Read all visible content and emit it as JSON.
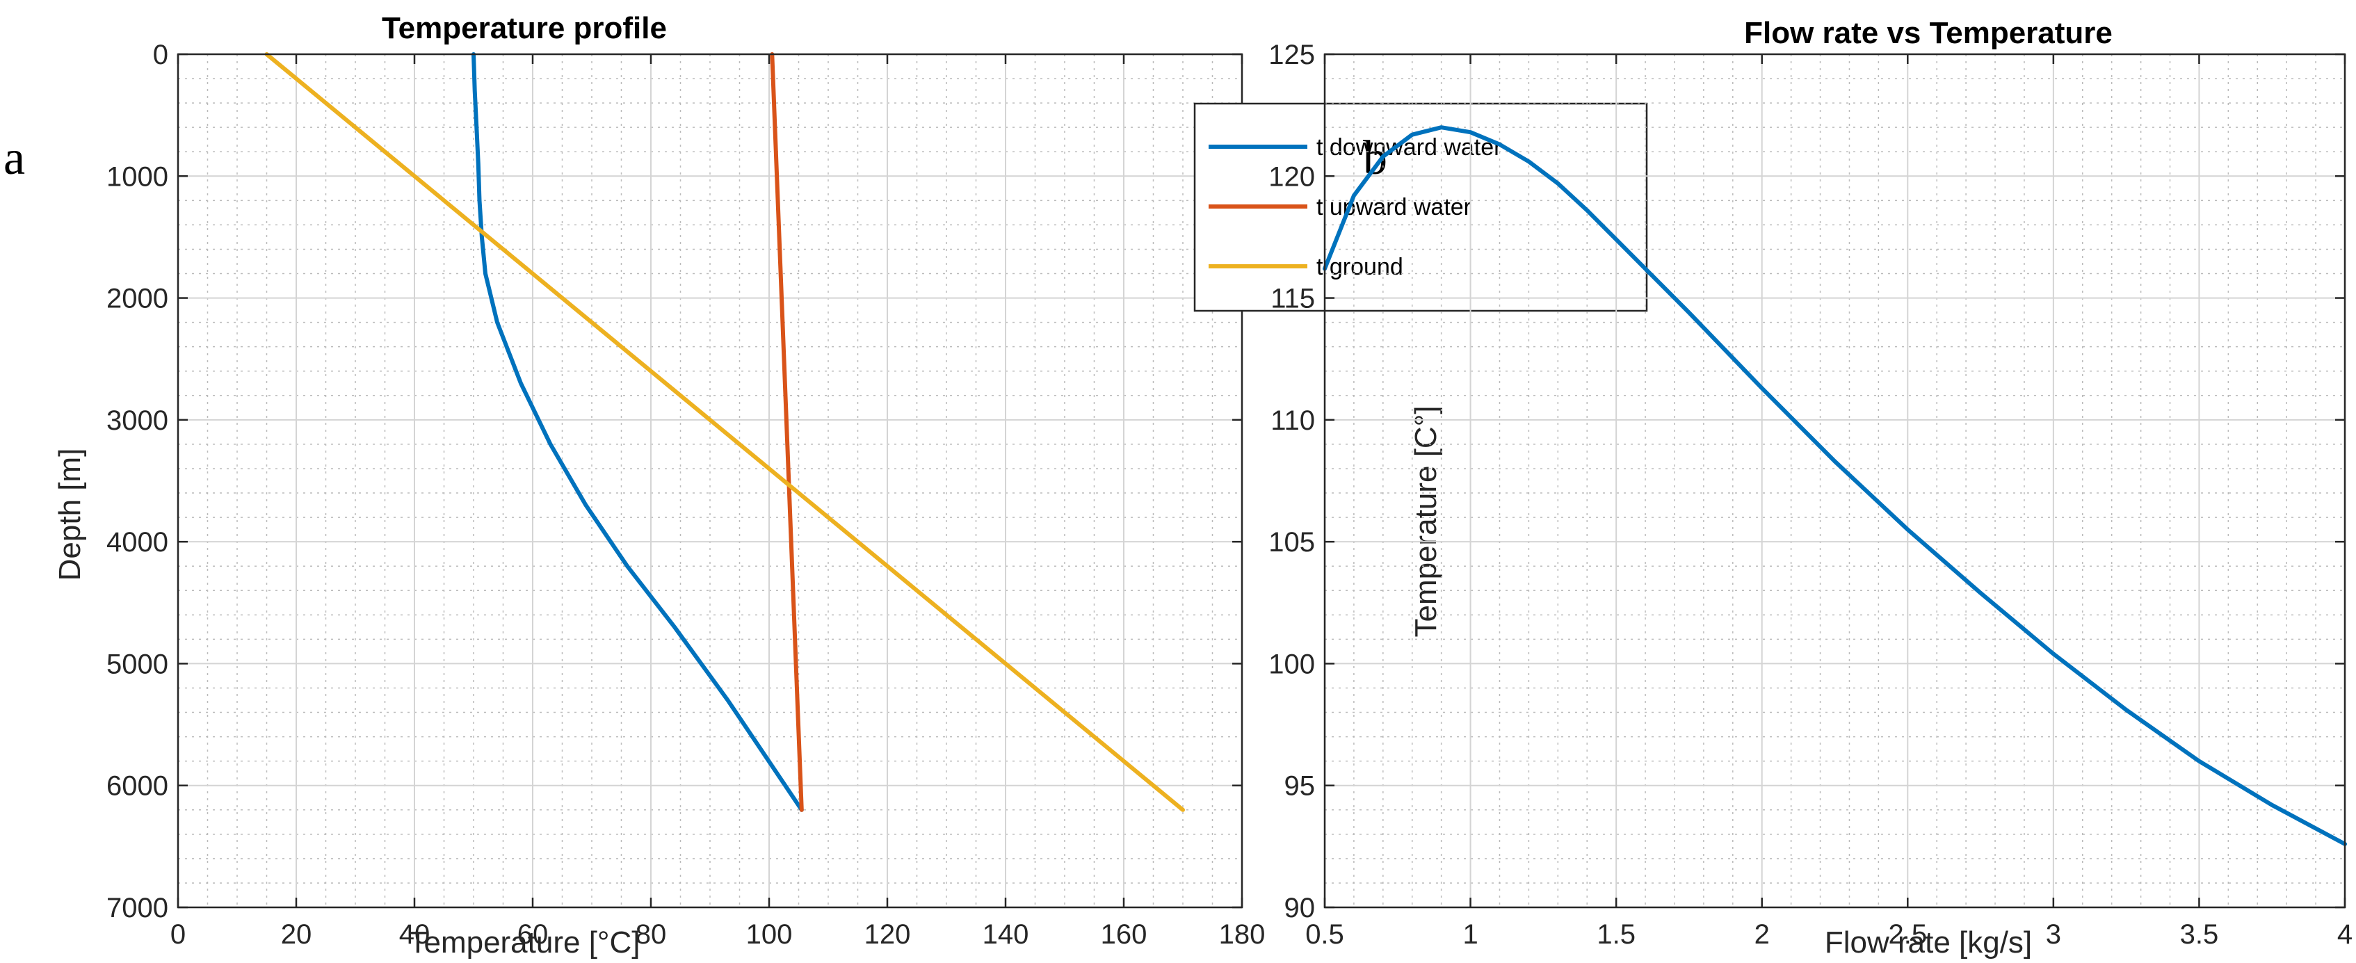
{
  "colors": {
    "blue": "#0072BD",
    "orange": "#D95319",
    "yellow": "#EDB120"
  },
  "chart_data": [
    {
      "type": "line",
      "panel_label": "a",
      "title": "Temperature profile",
      "xlabel": "Temperature [°C]",
      "ylabel": "Depth [m]",
      "xlim": [
        0,
        180
      ],
      "ylim": [
        0,
        7000
      ],
      "y_reversed": true,
      "grid": true,
      "minor_grid": true,
      "x_ticks": [
        0,
        20,
        40,
        60,
        80,
        100,
        120,
        140,
        160,
        180
      ],
      "y_ticks": [
        0,
        1000,
        2000,
        3000,
        4000,
        5000,
        6000,
        7000
      ],
      "legend_position": "top-right",
      "series": [
        {
          "name": "t downward water",
          "color": "#0072BD",
          "x": [
            50,
            50.2,
            50.5,
            50.8,
            51,
            51.4,
            52,
            54,
            58,
            63,
            69,
            76,
            84,
            93,
            105.5
          ],
          "y": [
            0,
            300,
            600,
            900,
            1200,
            1500,
            1800,
            2200,
            2700,
            3200,
            3700,
            4200,
            4700,
            5300,
            6200
          ]
        },
        {
          "name": "t upward water",
          "color": "#D95319",
          "x": [
            100.5,
            105.5
          ],
          "y": [
            0,
            6200
          ]
        },
        {
          "name": "t ground",
          "color": "#EDB120",
          "x": [
            15,
            170
          ],
          "y": [
            0,
            6200
          ]
        }
      ]
    },
    {
      "type": "line",
      "panel_label": "b",
      "title": "Flow rate vs Temperature",
      "xlabel": "Flow rate [kg/s]",
      "ylabel": "Temperature [C°]",
      "xlim": [
        0.5,
        4
      ],
      "ylim": [
        90,
        125
      ],
      "y_reversed": false,
      "grid": true,
      "minor_grid": true,
      "x_ticks": [
        0.5,
        1,
        1.5,
        2,
        2.5,
        3,
        3.5,
        4
      ],
      "y_ticks": [
        90,
        95,
        100,
        105,
        110,
        115,
        120,
        125
      ],
      "series": [
        {
          "name": "Temperature",
          "color": "#0072BD",
          "x": [
            0.5,
            0.6,
            0.7,
            0.8,
            0.9,
            1.0,
            1.1,
            1.2,
            1.3,
            1.4,
            1.5,
            1.75,
            2.0,
            2.25,
            2.5,
            2.75,
            3.0,
            3.25,
            3.5,
            3.75,
            4.0
          ],
          "y": [
            116.2,
            119.2,
            120.8,
            121.7,
            122.0,
            121.8,
            121.3,
            120.6,
            119.7,
            118.6,
            117.4,
            114.4,
            111.3,
            108.3,
            105.5,
            102.9,
            100.4,
            98.1,
            96.0,
            94.2,
            92.6
          ]
        }
      ]
    }
  ]
}
